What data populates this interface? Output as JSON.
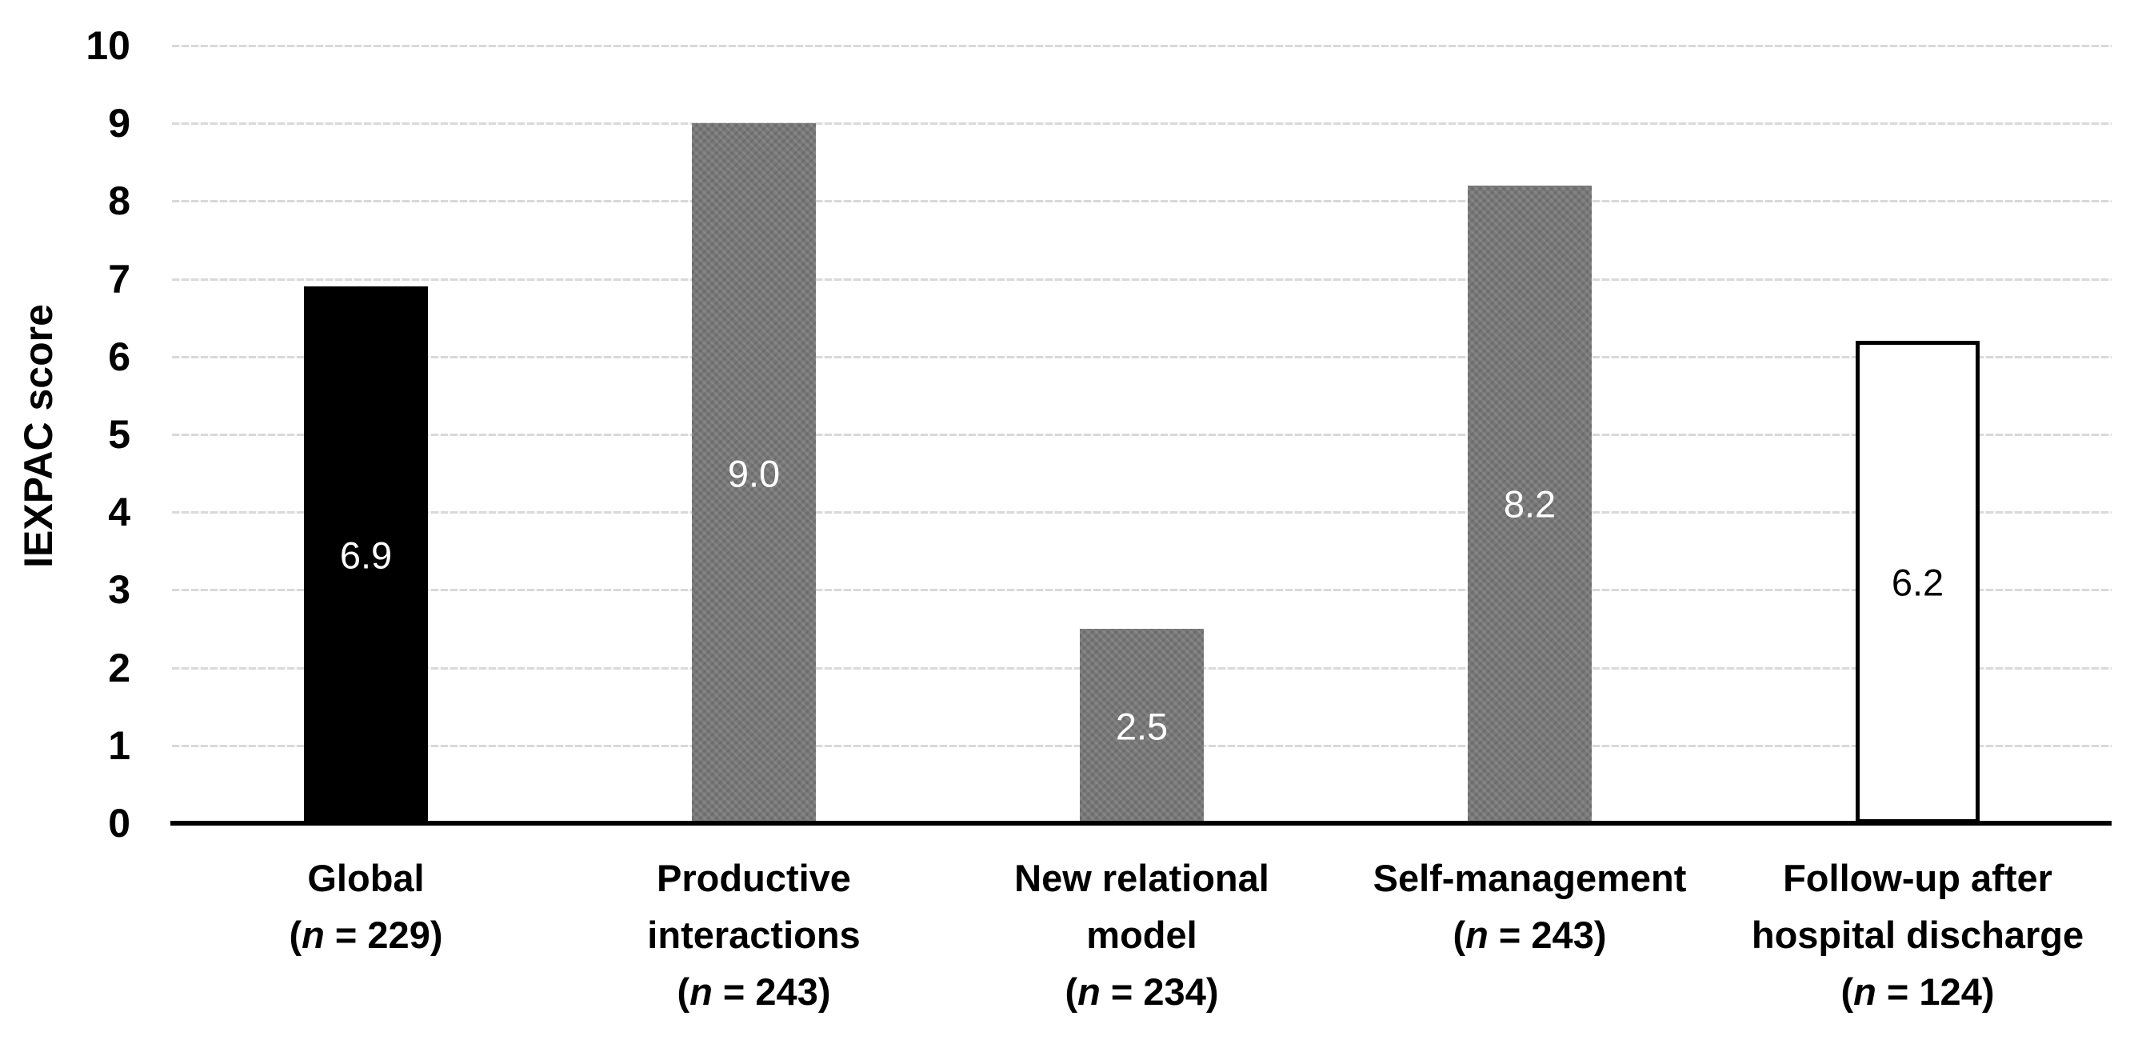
{
  "figure": {
    "background": "#ffffff"
  },
  "chart_data": {
    "type": "bar",
    "title": "",
    "xlabel": "",
    "ylabel": "IEXPAC score",
    "ylim": [
      0,
      10
    ],
    "yticks": [
      0,
      1,
      2,
      3,
      4,
      5,
      6,
      7,
      8,
      9,
      10
    ],
    "grid": {
      "axis": "y",
      "color": "#d9d9d9",
      "style": "fine-dashed"
    },
    "axis_line_color": "#000000",
    "legend": null,
    "categories": [
      {
        "name": "Global",
        "n_open": "(",
        "n_symbol": "n",
        "n_rest": " = 229)"
      },
      {
        "name": "Productive\ninteractions",
        "n_open": "(",
        "n_symbol": "n",
        "n_rest": " = 243)"
      },
      {
        "name": "New relational\nmodel",
        "n_open": "(",
        "n_symbol": "n",
        "n_rest": " = 234)"
      },
      {
        "name": "Self-management",
        "n_open": "(",
        "n_symbol": "n",
        "n_rest": " = 243)"
      },
      {
        "name": "Follow-up after\nhospital discharge",
        "n_open": "(",
        "n_symbol": "n",
        "n_rest": " = 124)"
      }
    ],
    "series": [
      {
        "name": "IEXPAC score",
        "points": [
          {
            "category": "Global",
            "value": 6.9,
            "label": "6.9",
            "fill": "#000000",
            "stroke": null,
            "label_color": "#ffffff",
            "pattern": null
          },
          {
            "category": "Productive interactions",
            "value": 9.0,
            "label": "9.0",
            "fill": "#787878",
            "stroke": null,
            "label_color": "#ffffff",
            "pattern": "woven"
          },
          {
            "category": "New relational model",
            "value": 2.5,
            "label": "2.5",
            "fill": "#787878",
            "stroke": null,
            "label_color": "#ffffff",
            "pattern": "woven"
          },
          {
            "category": "Self-management",
            "value": 8.2,
            "label": "8.2",
            "fill": "#787878",
            "stroke": null,
            "label_color": "#ffffff",
            "pattern": "woven"
          },
          {
            "category": "Follow-up after hospital discharge",
            "value": 6.2,
            "label": "6.2",
            "fill": "#ffffff",
            "stroke": "#000000",
            "label_color": "#000000",
            "pattern": null
          }
        ]
      }
    ]
  }
}
